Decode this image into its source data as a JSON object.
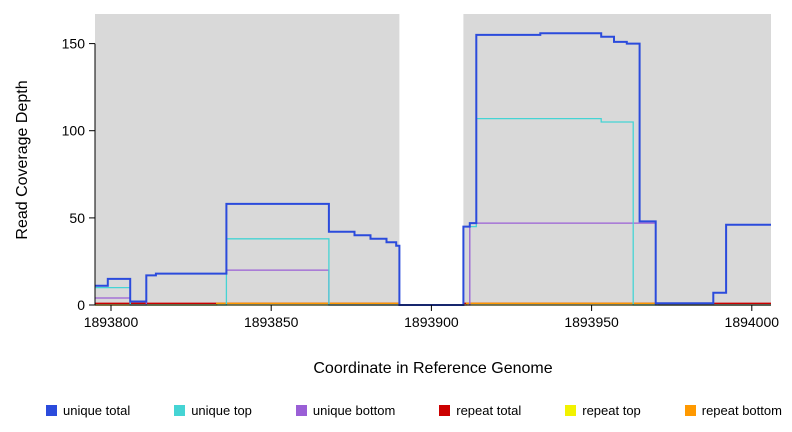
{
  "chart_data": {
    "type": "line",
    "subtype": "step",
    "title": "",
    "xlabel": "Coordinate in Reference Genome",
    "ylabel": "Read Coverage Depth",
    "xlim": [
      1893795,
      1894006
    ],
    "ylim": [
      0,
      167
    ],
    "x_ticks": [
      1893800,
      1893850,
      1893900,
      1893950,
      1894000
    ],
    "y_ticks": [
      0,
      50,
      100,
      150
    ],
    "plot_background": "#d9d9d9",
    "gap_band": {
      "x_start": 1893890,
      "x_end": 1893910,
      "color": "#ffffff"
    },
    "axis_color": "#000000",
    "grid": false,
    "legend_position": "bottom",
    "series": [
      {
        "name": "unique total",
        "color": "#2B4BDC",
        "line_width": 2,
        "z": 6,
        "end": 1894006,
        "steps": [
          [
            1893795,
            11
          ],
          [
            1893799,
            15
          ],
          [
            1893806,
            2
          ],
          [
            1893811,
            17
          ],
          [
            1893814,
            18
          ],
          [
            1893836,
            58
          ],
          [
            1893868,
            42
          ],
          [
            1893876,
            40
          ],
          [
            1893881,
            38
          ],
          [
            1893886,
            36
          ],
          [
            1893889,
            34
          ],
          [
            1893890,
            0
          ],
          [
            1893910,
            45
          ],
          [
            1893912,
            47
          ],
          [
            1893914,
            155
          ],
          [
            1893934,
            156
          ],
          [
            1893953,
            154
          ],
          [
            1893957,
            151
          ],
          [
            1893961,
            150
          ],
          [
            1893965,
            48
          ],
          [
            1893970,
            1
          ],
          [
            1893988,
            7
          ],
          [
            1893992,
            46
          ]
        ]
      },
      {
        "name": "unique top",
        "color": "#45D4D4",
        "line_width": 1.3,
        "z": 5,
        "end": 1894006,
        "steps": [
          [
            1893795,
            10
          ],
          [
            1893806,
            0
          ],
          [
            1893836,
            38
          ],
          [
            1893868,
            0
          ],
          [
            1893910,
            45
          ],
          [
            1893914,
            107
          ],
          [
            1893953,
            105
          ],
          [
            1893963,
            0
          ]
        ]
      },
      {
        "name": "unique bottom",
        "color": "#9A5FD6",
        "line_width": 1.3,
        "z": 4,
        "end": 1894006,
        "steps": [
          [
            1893795,
            4
          ],
          [
            1893806,
            0
          ],
          [
            1893811,
            17
          ],
          [
            1893814,
            18
          ],
          [
            1893836,
            20
          ],
          [
            1893868,
            0
          ],
          [
            1893912,
            47
          ],
          [
            1893970,
            0
          ]
        ]
      },
      {
        "name": "repeat total",
        "color": "#CC0000",
        "line_width": 1.3,
        "z": 2,
        "end": 1894006,
        "steps": [
          [
            1893795,
            1
          ],
          [
            1893890,
            0
          ],
          [
            1893910,
            1
          ]
        ]
      },
      {
        "name": "repeat top",
        "color": "#F2F200",
        "line_width": 1.3,
        "z": 1,
        "end": 1894006,
        "steps": [
          [
            1893795,
            0
          ]
        ]
      },
      {
        "name": "repeat bottom",
        "color": "#FF9900",
        "line_width": 1.3,
        "z": 3,
        "end": 1894006,
        "steps": [
          [
            1893795,
            0
          ],
          [
            1893833,
            1
          ],
          [
            1893890,
            0
          ],
          [
            1893911,
            1
          ],
          [
            1893971,
            0
          ]
        ]
      }
    ]
  }
}
